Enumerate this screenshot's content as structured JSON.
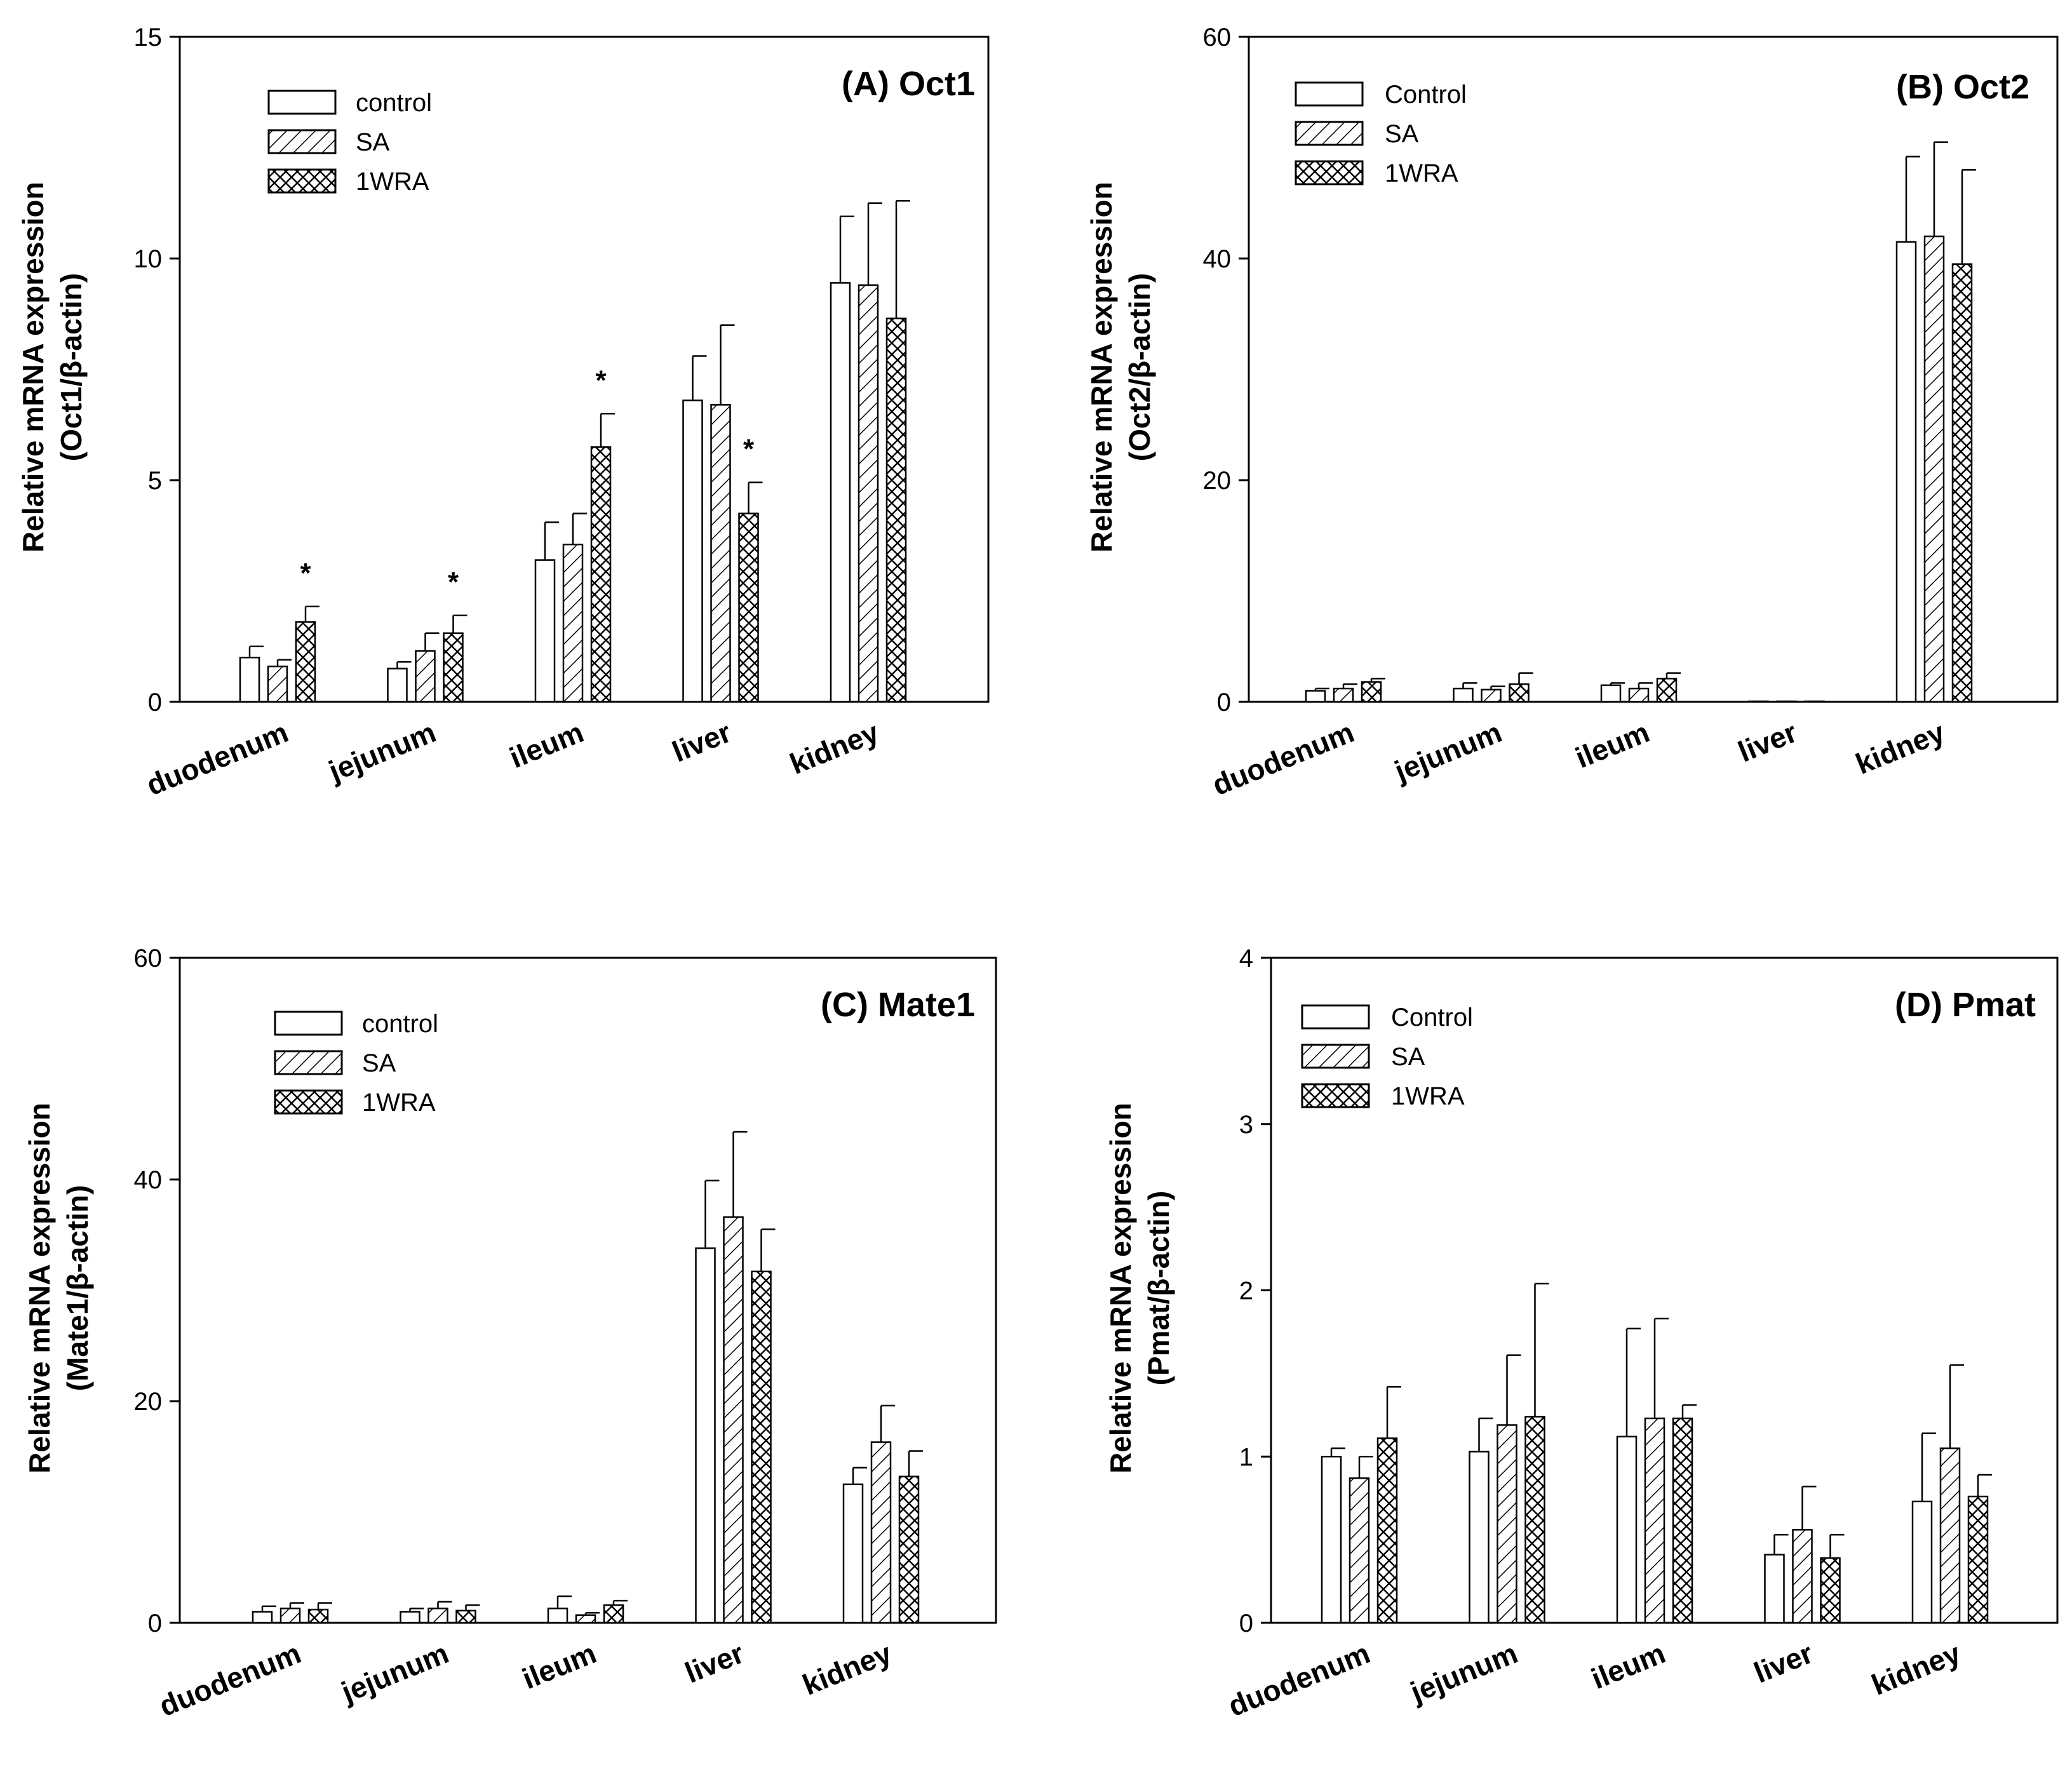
{
  "chart_data": [
    {
      "type": "bar",
      "title": "(A) Oct1",
      "ylabel_line1": "Relative mRNA expression",
      "ylabel_line2": "(Oct1/β-actin)",
      "xlabel": "",
      "ylim": [
        0,
        15
      ],
      "yticks": [
        0,
        5,
        10,
        15
      ],
      "categories": [
        "duodenum",
        "jejunum",
        "ileum",
        "liver",
        "kidney"
      ],
      "series": [
        {
          "name": "control",
          "pattern": "empty",
          "values": [
            1.0,
            0.75,
            3.2,
            6.8,
            9.45
          ],
          "errors": [
            0.25,
            0.15,
            0.85,
            1.0,
            1.5
          ]
        },
        {
          "name": "SA",
          "pattern": "diagonal",
          "values": [
            0.8,
            1.15,
            3.55,
            6.7,
            9.4
          ],
          "errors": [
            0.15,
            0.4,
            0.7,
            1.8,
            1.85
          ]
        },
        {
          "name": "1WRA",
          "pattern": "crosshatch",
          "values": [
            1.8,
            1.55,
            5.75,
            4.25,
            8.65
          ],
          "errors": [
            0.35,
            0.4,
            0.75,
            0.7,
            2.65
          ]
        }
      ],
      "significance": [
        {
          "category": "duodenum",
          "series": "1WRA",
          "label": "*"
        },
        {
          "category": "jejunum",
          "series": "1WRA",
          "label": "*"
        },
        {
          "category": "ileum",
          "series": "1WRA",
          "label": "*"
        },
        {
          "category": "liver",
          "series": "1WRA",
          "label": "*"
        }
      ],
      "legend_position": "top-left"
    },
    {
      "type": "bar",
      "title": "(B) Oct2",
      "ylabel_line1": "Relative mRNA expression",
      "ylabel_line2": "(Oct2/β-actin)",
      "xlabel": "",
      "ylim": [
        0,
        60
      ],
      "yticks": [
        0,
        20,
        40,
        60
      ],
      "categories": [
        "duodenum",
        "jejunum",
        "ileum",
        "liver",
        "kidney"
      ],
      "series": [
        {
          "name": "Control",
          "pattern": "empty",
          "values": [
            1.0,
            1.2,
            1.5,
            0.05,
            41.5
          ],
          "errors": [
            0.2,
            0.5,
            0.2,
            0.0,
            7.7
          ]
        },
        {
          "name": "SA",
          "pattern": "diagonal",
          "values": [
            1.2,
            1.1,
            1.2,
            0.05,
            42.0
          ],
          "errors": [
            0.4,
            0.3,
            0.5,
            0.0,
            8.5
          ]
        },
        {
          "name": "1WRA",
          "pattern": "crosshatch",
          "values": [
            1.8,
            1.6,
            2.1,
            0.05,
            39.5
          ],
          "errors": [
            0.3,
            1.0,
            0.5,
            0.0,
            8.5
          ]
        }
      ],
      "significance": [],
      "legend_position": "top-left"
    },
    {
      "type": "bar",
      "title": "(C) Mate1",
      "ylabel_line1": "Relative mRNA expression",
      "ylabel_line2": "(Mate1/β-actin)",
      "xlabel": "",
      "ylim": [
        0,
        60
      ],
      "yticks": [
        0,
        20,
        40,
        60
      ],
      "categories": [
        "duodenum",
        "jejunum",
        "ileum",
        "liver",
        "kidney"
      ],
      "series": [
        {
          "name": "control",
          "pattern": "empty",
          "values": [
            1.0,
            1.0,
            1.3,
            33.8,
            12.5
          ],
          "errors": [
            0.5,
            0.3,
            1.1,
            6.1,
            1.5
          ]
        },
        {
          "name": "SA",
          "pattern": "diagonal",
          "values": [
            1.3,
            1.3,
            0.7,
            36.6,
            16.3
          ],
          "errors": [
            0.5,
            0.6,
            0.2,
            7.7,
            3.3
          ]
        },
        {
          "name": "1WRA",
          "pattern": "crosshatch",
          "values": [
            1.2,
            1.1,
            1.6,
            31.7,
            13.2
          ],
          "errors": [
            0.6,
            0.5,
            0.4,
            3.8,
            2.3
          ]
        }
      ],
      "significance": [],
      "legend_position": "top-left"
    },
    {
      "type": "bar",
      "title": "(D) Pmat",
      "ylabel_line1": "Relative mRNA expression",
      "ylabel_line2": "(Pmat/β-actin)",
      "xlabel": "",
      "ylim": [
        0,
        4
      ],
      "yticks": [
        0,
        1,
        2,
        3,
        4
      ],
      "categories": [
        "duodenum",
        "jejunum",
        "ileum",
        "liver",
        "kidney"
      ],
      "series": [
        {
          "name": "Control",
          "pattern": "empty",
          "values": [
            1.0,
            1.03,
            1.12,
            0.41,
            0.73
          ],
          "errors": [
            0.05,
            0.2,
            0.65,
            0.12,
            0.41
          ]
        },
        {
          "name": "SA",
          "pattern": "diagonal",
          "values": [
            0.87,
            1.19,
            1.23,
            0.56,
            1.05
          ],
          "errors": [
            0.13,
            0.42,
            0.6,
            0.26,
            0.5
          ]
        },
        {
          "name": "1WRA",
          "pattern": "crosshatch",
          "values": [
            1.11,
            1.24,
            1.23,
            0.39,
            0.76
          ],
          "errors": [
            0.31,
            0.8,
            0.08,
            0.14,
            0.13
          ]
        }
      ],
      "significance": [],
      "legend_position": "top-left"
    }
  ]
}
